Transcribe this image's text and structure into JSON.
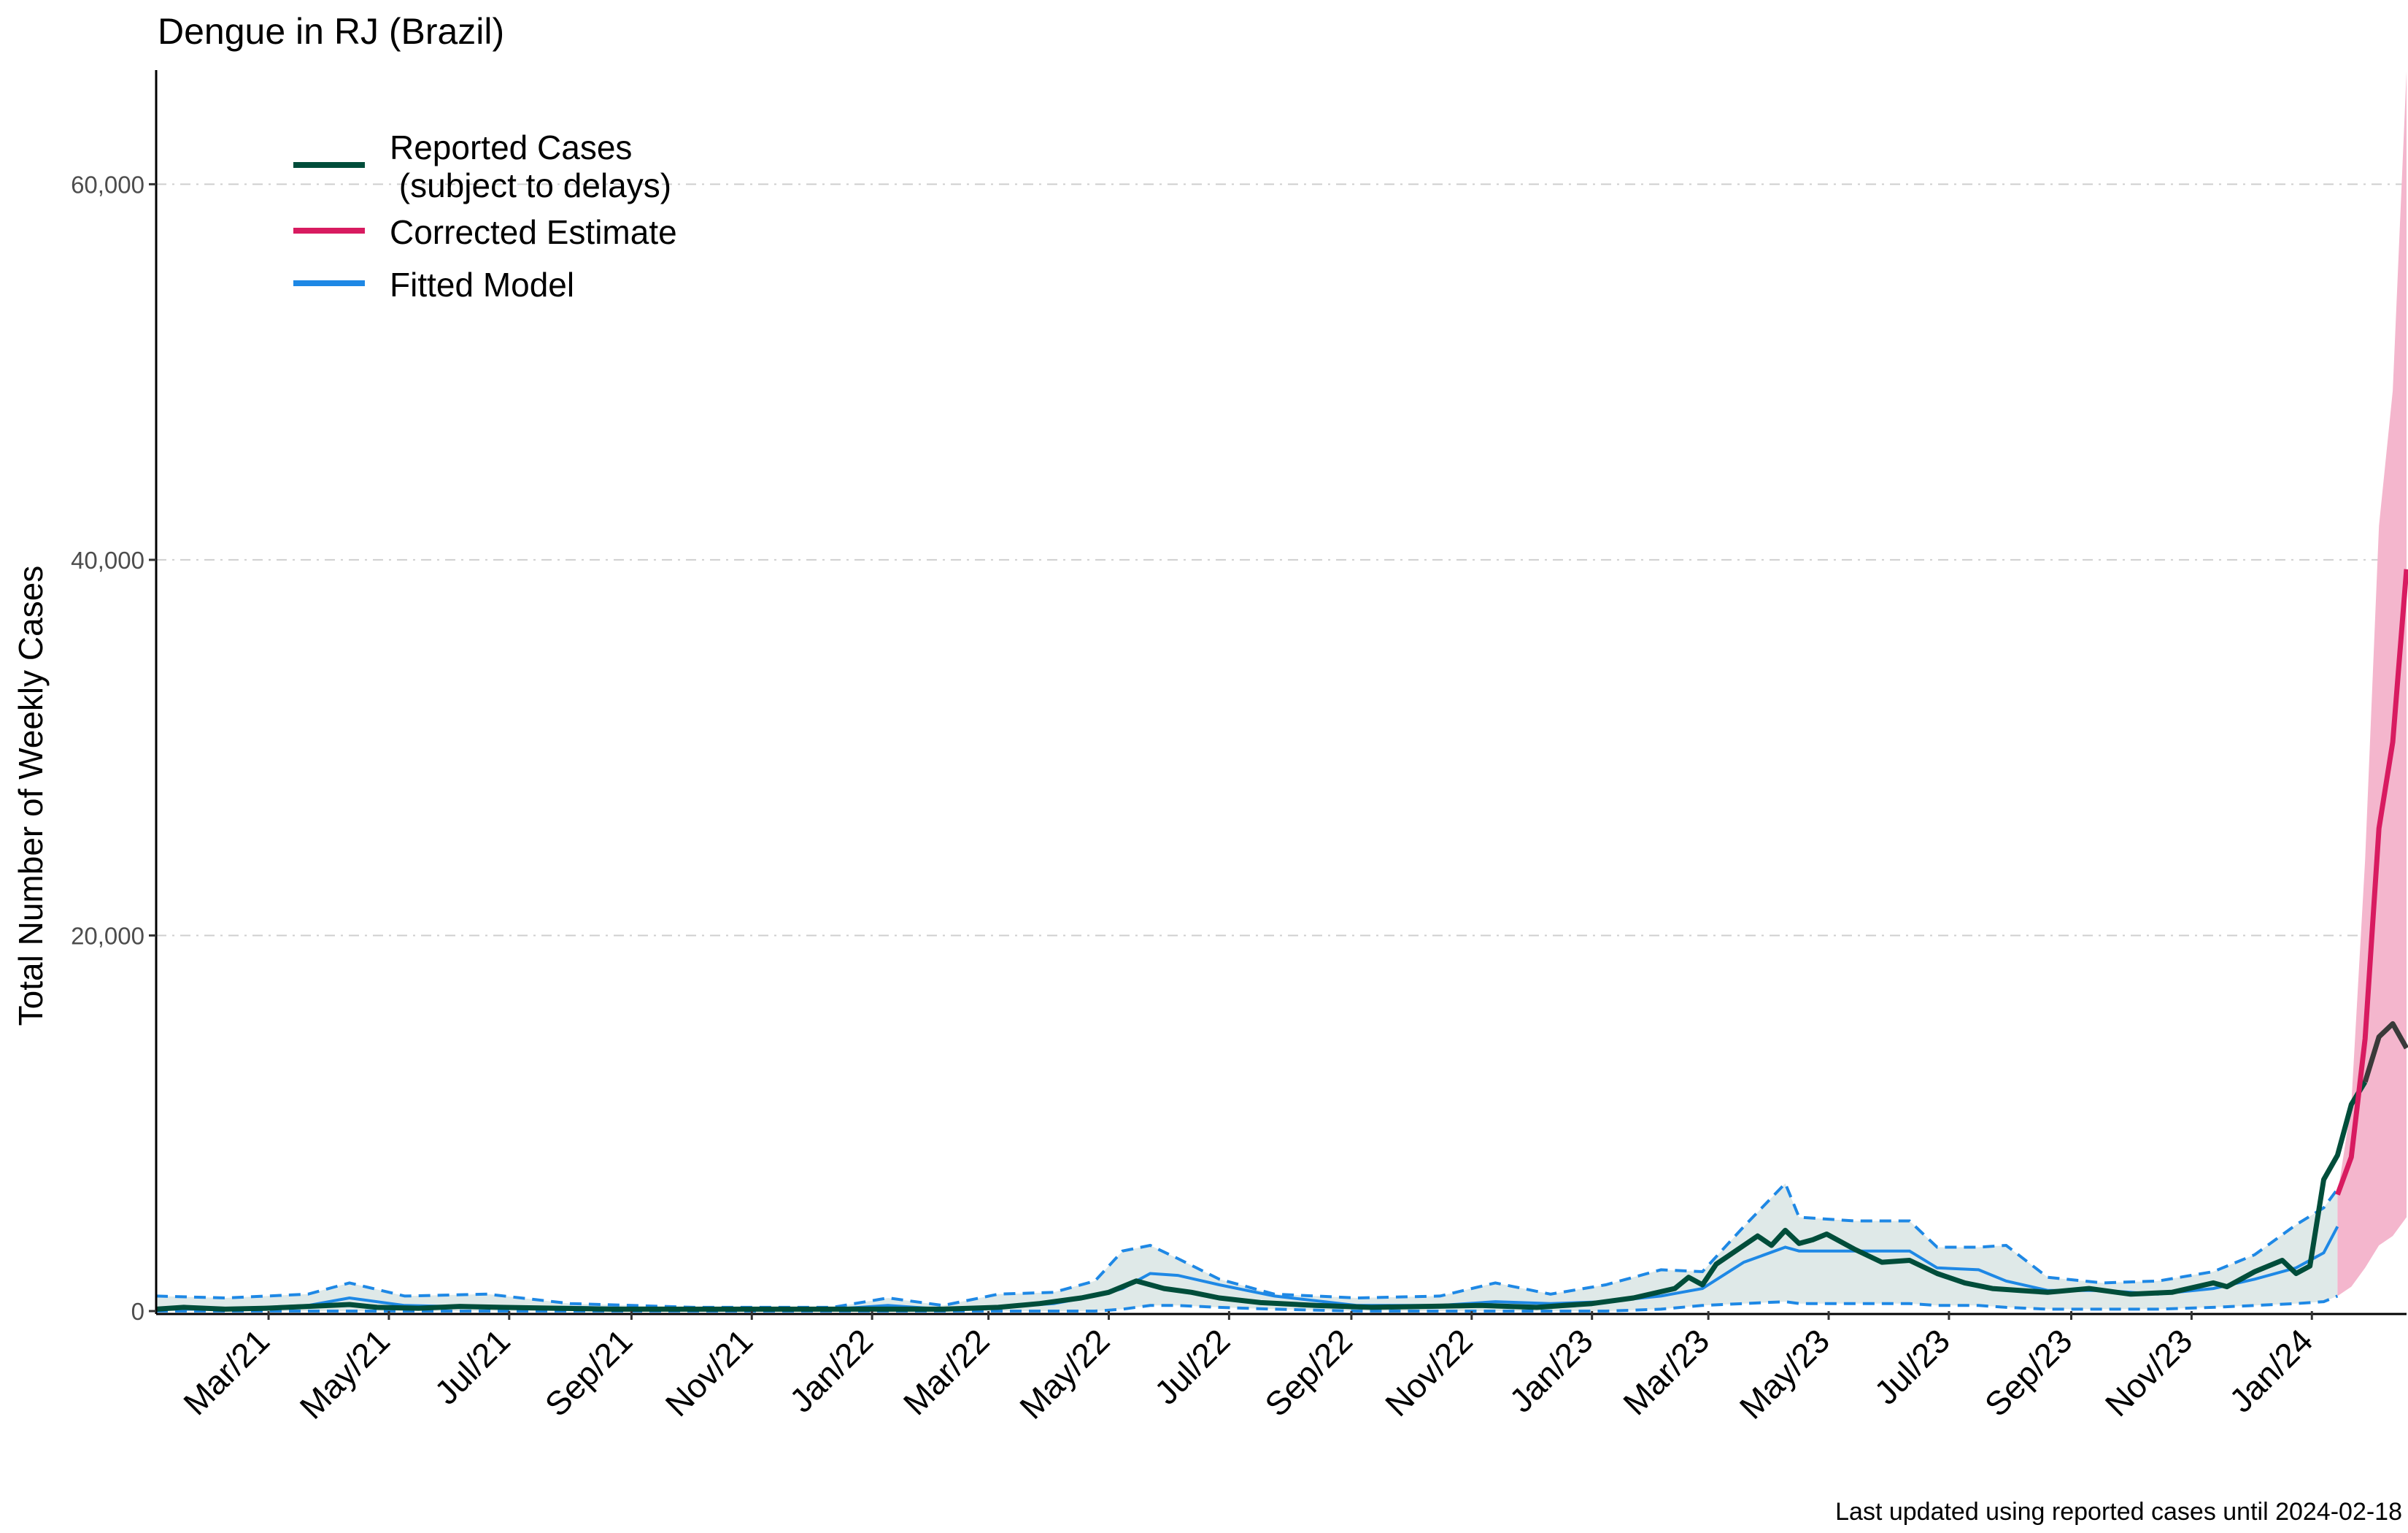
{
  "chart_data": {
    "type": "line",
    "title": "Dengue in RJ (Brazil)",
    "ylabel": "Total Number of Weekly Cases",
    "xlabel": "",
    "caption": "Last updated using reported cases until 2024-02-18",
    "ylim": [
      0,
      66000
    ],
    "xlim": [
      "2021-01-03",
      "2024-02-18"
    ],
    "yticks": [
      0,
      20000,
      40000,
      60000
    ],
    "ytick_labels": [
      "0",
      "20,000",
      "40,000",
      "60,000"
    ],
    "xticks": [
      "2021-03-01",
      "2021-05-01",
      "2021-07-01",
      "2021-09-01",
      "2021-11-01",
      "2022-01-01",
      "2022-03-01",
      "2022-05-01",
      "2022-07-01",
      "2022-09-01",
      "2022-11-01",
      "2023-01-01",
      "2023-03-01",
      "2023-05-01",
      "2023-07-01",
      "2023-09-01",
      "2023-11-01",
      "2024-01-01"
    ],
    "xtick_labels": [
      "Mar/21",
      "May/21",
      "Jul/21",
      "Sep/21",
      "Nov/21",
      "Jan/22",
      "Mar/22",
      "May/22",
      "Jul/22",
      "Sep/22",
      "Nov/22",
      "Jan/23",
      "Mar/23",
      "May/23",
      "Jul/23",
      "Sep/23",
      "Nov/23",
      "Jan/24"
    ],
    "grid": "horizontal dashed",
    "legend_position": "top-left",
    "legend": [
      {
        "label": "Reported Cases\n (subject to delays)",
        "color": "#004d3a"
      },
      {
        "label": "Corrected Estimate",
        "color": "#d81b60"
      },
      {
        "label": "Fitted Model",
        "color": "#1e88e5"
      }
    ],
    "series": [
      {
        "name": "Reported Cases\n (subject to delays)",
        "color": "#004d3a",
        "x": [
          "2021-01-03",
          "2021-01-17",
          "2021-02-07",
          "2021-02-28",
          "2021-03-21",
          "2021-04-11",
          "2021-04-25",
          "2021-05-16",
          "2021-06-06",
          "2021-06-27",
          "2021-07-25",
          "2021-08-22",
          "2021-09-19",
          "2021-10-17",
          "2021-11-14",
          "2021-12-12",
          "2022-01-09",
          "2022-02-06",
          "2022-03-06",
          "2022-03-27",
          "2022-04-17",
          "2022-05-01",
          "2022-05-15",
          "2022-05-29",
          "2022-06-12",
          "2022-06-26",
          "2022-07-17",
          "2022-08-14",
          "2022-09-11",
          "2022-10-09",
          "2022-11-06",
          "2022-12-04",
          "2023-01-01",
          "2023-01-22",
          "2023-02-12",
          "2023-02-19",
          "2023-02-26",
          "2023-03-05",
          "2023-03-19",
          "2023-03-26",
          "2023-04-02",
          "2023-04-09",
          "2023-04-16",
          "2023-04-23",
          "2023-04-30",
          "2023-05-14",
          "2023-05-28",
          "2023-06-11",
          "2023-06-25",
          "2023-07-09",
          "2023-07-23",
          "2023-08-06",
          "2023-08-20",
          "2023-09-10",
          "2023-10-01",
          "2023-10-22",
          "2023-11-12",
          "2023-11-19",
          "2023-12-03",
          "2023-12-17",
          "2023-12-24",
          "2023-12-31",
          "2024-01-07",
          "2024-01-14",
          "2024-01-21",
          "2024-01-28",
          "2024-02-04",
          "2024-02-11",
          "2024-02-18"
        ],
        "y": [
          100,
          200,
          100,
          150,
          250,
          350,
          200,
          150,
          250,
          200,
          150,
          100,
          100,
          100,
          100,
          100,
          100,
          100,
          200,
          400,
          700,
          1000,
          1600,
          1200,
          1000,
          700,
          450,
          300,
          200,
          250,
          300,
          200,
          400,
          700,
          1200,
          1800,
          1400,
          2500,
          3500,
          4000,
          3500,
          4300,
          3600,
          3800,
          4100,
          3300,
          2600,
          2700,
          2000,
          1500,
          1200,
          1100,
          1000,
          1200,
          900,
          1000,
          1500,
          1300,
          2100,
          2700,
          2000,
          2400,
          7000,
          8300,
          11000,
          12200,
          14600,
          15300,
          14000
        ],
        "gray_tail_from": "2024-01-28"
      },
      {
        "name": "Corrected Estimate",
        "color": "#d81b60",
        "x": [
          "2024-01-14",
          "2024-01-21",
          "2024-01-28",
          "2024-02-04",
          "2024-02-11",
          "2024-02-18"
        ],
        "y": [
          6200,
          8200,
          14500,
          25700,
          30300,
          39500
        ],
        "lower": [
          800,
          1300,
          2300,
          3500,
          4000,
          5000
        ],
        "upper": [
          6200,
          11000,
          24000,
          41800,
          49000,
          66000
        ]
      },
      {
        "name": "Fitted Model",
        "color": "#1e88e5",
        "x": [
          "2021-01-03",
          "2021-02-07",
          "2021-03-21",
          "2021-04-11",
          "2021-05-09",
          "2021-06-20",
          "2021-08-01",
          "2021-10-03",
          "2021-12-12",
          "2022-01-09",
          "2022-02-06",
          "2022-03-06",
          "2022-04-03",
          "2022-04-24",
          "2022-05-08",
          "2022-05-22",
          "2022-06-05",
          "2022-06-26",
          "2022-07-24",
          "2022-09-04",
          "2022-10-16",
          "2022-11-13",
          "2022-12-11",
          "2023-01-08",
          "2023-02-05",
          "2023-02-26",
          "2023-03-19",
          "2023-04-09",
          "2023-04-16",
          "2023-05-14",
          "2023-06-11",
          "2023-06-25",
          "2023-07-16",
          "2023-07-30",
          "2023-08-20",
          "2023-09-17",
          "2023-10-15",
          "2023-11-12",
          "2023-12-03",
          "2023-12-24",
          "2024-01-07",
          "2024-01-14"
        ],
        "y": [
          100,
          100,
          300,
          700,
          300,
          200,
          200,
          100,
          100,
          300,
          100,
          200,
          400,
          800,
          1200,
          2000,
          1900,
          1400,
          800,
          300,
          300,
          500,
          400,
          500,
          800,
          1200,
          2600,
          3400,
          3200,
          3200,
          3200,
          2300,
          2200,
          1600,
          1100,
          1100,
          900,
          1200,
          1700,
          2300,
          3100,
          4500
        ]
      },
      {
        "name": "Fitted Model (upper interval)",
        "color": "#1e88e5",
        "x": [
          "2021-01-03",
          "2021-02-07",
          "2021-03-21",
          "2021-04-11",
          "2021-05-09",
          "2021-06-20",
          "2021-08-01",
          "2021-10-03",
          "2021-12-12",
          "2022-01-09",
          "2022-02-06",
          "2022-03-06",
          "2022-04-03",
          "2022-04-24",
          "2022-05-08",
          "2022-05-22",
          "2022-06-05",
          "2022-06-26",
          "2022-07-24",
          "2022-09-04",
          "2022-10-16",
          "2022-11-13",
          "2022-12-11",
          "2023-01-08",
          "2023-02-05",
          "2023-02-26",
          "2023-03-19",
          "2023-04-09",
          "2023-04-16",
          "2023-05-14",
          "2023-06-11",
          "2023-06-25",
          "2023-07-16",
          "2023-07-30",
          "2023-08-20",
          "2023-09-17",
          "2023-10-15",
          "2023-11-12",
          "2023-12-03",
          "2023-12-24",
          "2024-01-07",
          "2024-01-14"
        ],
        "y": [
          800,
          700,
          900,
          1500,
          800,
          900,
          400,
          200,
          200,
          700,
          300,
          900,
          1000,
          1600,
          3200,
          3500,
          2800,
          1700,
          900,
          700,
          800,
          1500,
          900,
          1400,
          2200,
          2100,
          4500,
          6800,
          5000,
          4800,
          4800,
          3400,
          3400,
          3500,
          1800,
          1500,
          1600,
          2100,
          3000,
          4600,
          5500,
          6500
        ]
      },
      {
        "name": "Fitted Model (lower interval)",
        "color": "#1e88e5",
        "x": [
          "2021-01-03",
          "2021-02-07",
          "2021-03-21",
          "2021-04-11",
          "2021-05-09",
          "2021-06-20",
          "2021-08-01",
          "2021-10-03",
          "2021-12-12",
          "2022-01-09",
          "2022-02-06",
          "2022-03-06",
          "2022-04-03",
          "2022-04-24",
          "2022-05-08",
          "2022-05-22",
          "2022-06-05",
          "2022-06-26",
          "2022-07-24",
          "2022-09-04",
          "2022-10-16",
          "2022-11-13",
          "2022-12-11",
          "2023-01-08",
          "2023-02-05",
          "2023-02-26",
          "2023-03-19",
          "2023-04-09",
          "2023-04-16",
          "2023-05-14",
          "2023-06-11",
          "2023-06-25",
          "2023-07-16",
          "2023-07-30",
          "2023-08-20",
          "2023-09-17",
          "2023-10-15",
          "2023-11-12",
          "2023-12-03",
          "2023-12-24",
          "2024-01-07",
          "2024-01-14"
        ],
        "y": [
          0,
          0,
          0,
          0,
          0,
          0,
          0,
          0,
          0,
          0,
          0,
          0,
          0,
          0,
          100,
          300,
          300,
          200,
          100,
          0,
          0,
          0,
          0,
          0,
          100,
          300,
          400,
          500,
          400,
          400,
          400,
          300,
          300,
          200,
          100,
          100,
          100,
          200,
          300,
          400,
          500,
          800
        ]
      }
    ]
  }
}
